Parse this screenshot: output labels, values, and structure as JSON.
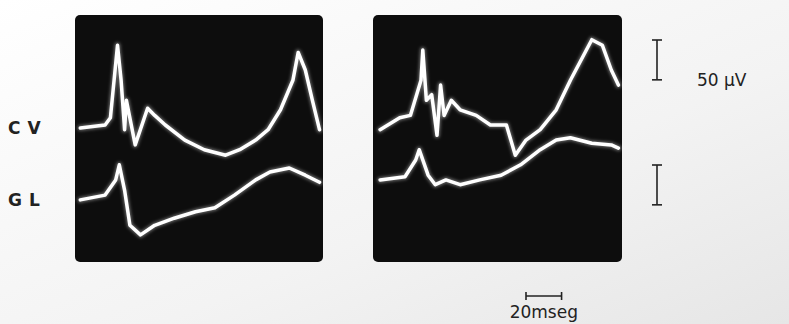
{
  "chart_data": [
    {
      "type": "line",
      "xlim": [
        0,
        140
      ],
      "ylim": [
        0,
        310
      ],
      "tick_labels": false,
      "grid": false,
      "series": [
        {
          "name": "CV",
          "color": "#ffffff",
          "x": [
            3,
            17,
            20,
            24,
            26,
            28,
            29,
            34,
            41,
            45,
            51,
            62,
            73,
            85,
            93,
            102,
            109,
            116,
            123,
            126,
            130,
            134,
            138
          ],
          "values": [
            168,
            172,
            181,
            272,
            228,
            166,
            203,
            147,
            193,
            184,
            172,
            153,
            141,
            134,
            141,
            153,
            166,
            191,
            228,
            263,
            241,
            203,
            166
          ]
        },
        {
          "name": "GL",
          "color": "#ffffff",
          "x": [
            3,
            17,
            23,
            25,
            28,
            31,
            37,
            45,
            56,
            68,
            79,
            90,
            102,
            110,
            121,
            130,
            138
          ],
          "values": [
            78,
            84,
            103,
            122,
            90,
            46,
            34,
            46,
            55,
            63,
            68,
            84,
            103,
            113,
            118,
            109,
            100
          ]
        }
      ]
    },
    {
      "type": "line",
      "xlim": [
        0,
        140
      ],
      "ylim": [
        0,
        310
      ],
      "tick_labels": false,
      "grid": false,
      "series": [
        {
          "color": "#ffffff",
          "x": [
            4,
            15,
            21,
            27,
            28,
            30,
            33,
            36,
            38,
            40,
            44,
            49,
            58,
            66,
            75,
            80,
            86,
            94,
            103,
            111,
            123,
            129,
            134,
            138
          ],
          "values": [
            166,
            181,
            184,
            228,
            266,
            203,
            210,
            159,
            222,
            184,
            203,
            191,
            184,
            172,
            172,
            134,
            153,
            166,
            191,
            228,
            279,
            272,
            241,
            222
          ]
        },
        {
          "color": "#ffffff",
          "x": [
            4,
            18,
            24,
            26,
            31,
            35,
            41,
            49,
            60,
            72,
            83,
            94,
            103,
            111,
            123,
            134,
            138
          ],
          "values": [
            103,
            107,
            128,
            141,
            109,
            97,
            103,
            97,
            103,
            109,
            122,
            141,
            153,
            156,
            149,
            147,
            143
          ]
        }
      ]
    }
  ],
  "scale_bars": {
    "y": {
      "value": 50,
      "label": "50 µV"
    },
    "x": {
      "value": 20,
      "label": "20mseg"
    }
  }
}
